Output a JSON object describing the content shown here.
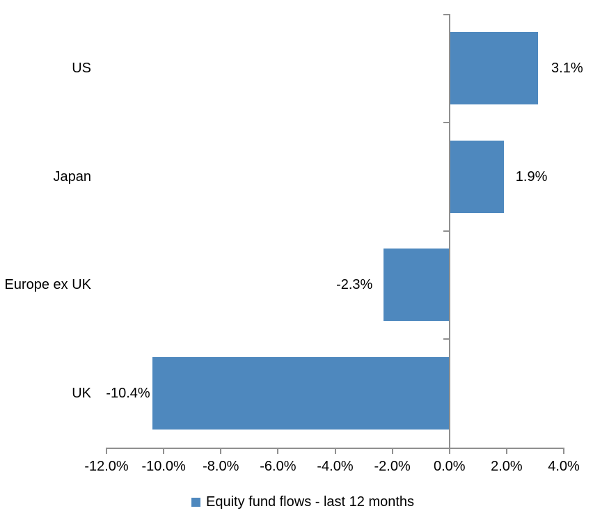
{
  "chart_data": {
    "type": "bar",
    "orientation": "horizontal",
    "title": "",
    "categories": [
      "US",
      "Japan",
      "Europe ex UK",
      "UK"
    ],
    "series": [
      {
        "name": "Equity fund flows - last 12 months",
        "values": [
          3.1,
          1.9,
          -2.3,
          -10.4
        ],
        "value_labels": [
          "3.1%",
          "1.9%",
          "-2.3%",
          "-10.4%"
        ]
      }
    ],
    "xlabel": "",
    "ylabel": "",
    "xlim": [
      -12,
      4
    ],
    "x_ticks": [
      -12,
      -10,
      -8,
      -6,
      -4,
      -2,
      0,
      2,
      4
    ],
    "x_tick_labels": [
      "-12.0%",
      "-10.0%",
      "-8.0%",
      "-6.0%",
      "-4.0%",
      "-2.0%",
      "0.0%",
      "2.0%",
      "4.0%"
    ],
    "grid": false,
    "legend_position": "bottom",
    "data_label_position": "outside-end",
    "colors": {
      "bar": "#4E88BE",
      "axis": "#8F8F8F",
      "text": "#000000",
      "background": "#FFFFFF"
    }
  },
  "legend": {
    "label": "Equity fund flows - last 12 months"
  }
}
